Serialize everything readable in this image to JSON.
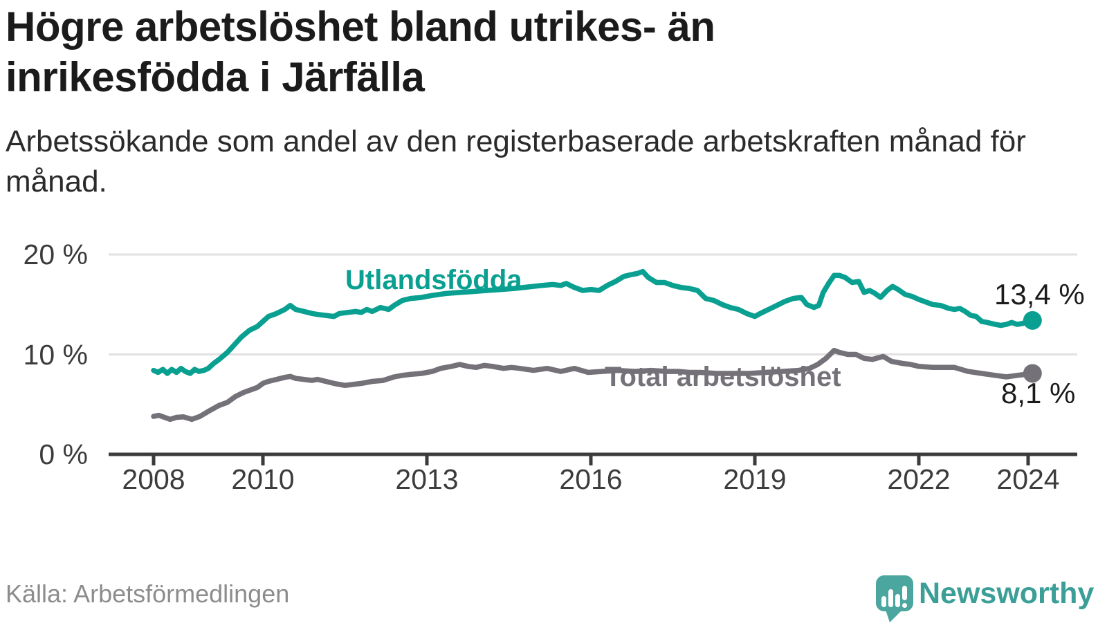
{
  "chart_data": {
    "type": "line",
    "title": "Högre arbetslöshet bland utrikes- än inrikesfödda i Järfälla",
    "subtitle": "Arbetssökande som andel av den registerbaserade arbetskraften månad för månad.",
    "source": "Källa: Arbetsförmedlingen",
    "xlabel": "",
    "ylabel": "",
    "unit": "%",
    "grid": "horizontal-only",
    "legend": "inline-labels",
    "xlim": [
      2007.18,
      2024.92
    ],
    "ylim": [
      0,
      21.6
    ],
    "x_ticks": [
      {
        "value": 2008,
        "label": "2008"
      },
      {
        "value": 2010,
        "label": "2010"
      },
      {
        "value": 2013,
        "label": "2013"
      },
      {
        "value": 2016,
        "label": "2016"
      },
      {
        "value": 2019,
        "label": "2019"
      },
      {
        "value": 2022,
        "label": "2022"
      },
      {
        "value": 2024,
        "label": "2024"
      }
    ],
    "y_ticks": [
      {
        "value": 0,
        "label": "0 %"
      },
      {
        "value": 10,
        "label": "10 %"
      },
      {
        "value": 20,
        "label": "20 %"
      }
    ],
    "series": [
      {
        "name": "Utlandsfödda",
        "color": "#0aa091",
        "end_label": "13,4 %",
        "end_value": 13.4,
        "points": [
          [
            2008.0,
            8.4
          ],
          [
            2008.08,
            8.2
          ],
          [
            2008.17,
            8.5
          ],
          [
            2008.25,
            8.1
          ],
          [
            2008.33,
            8.5
          ],
          [
            2008.42,
            8.2
          ],
          [
            2008.5,
            8.6
          ],
          [
            2008.58,
            8.3
          ],
          [
            2008.67,
            8.1
          ],
          [
            2008.75,
            8.5
          ],
          [
            2008.83,
            8.3
          ],
          [
            2008.92,
            8.4
          ],
          [
            2009.0,
            8.6
          ],
          [
            2009.1,
            9.1
          ],
          [
            2009.2,
            9.5
          ],
          [
            2009.35,
            10.2
          ],
          [
            2009.5,
            11.1
          ],
          [
            2009.6,
            11.7
          ],
          [
            2009.75,
            12.4
          ],
          [
            2009.9,
            12.8
          ],
          [
            2010.0,
            13.3
          ],
          [
            2010.1,
            13.8
          ],
          [
            2010.25,
            14.1
          ],
          [
            2010.4,
            14.5
          ],
          [
            2010.5,
            14.9
          ],
          [
            2010.6,
            14.5
          ],
          [
            2010.75,
            14.3
          ],
          [
            2010.9,
            14.1
          ],
          [
            2011.0,
            14.0
          ],
          [
            2011.15,
            13.9
          ],
          [
            2011.3,
            13.8
          ],
          [
            2011.4,
            14.1
          ],
          [
            2011.55,
            14.2
          ],
          [
            2011.7,
            14.3
          ],
          [
            2011.8,
            14.2
          ],
          [
            2011.9,
            14.5
          ],
          [
            2012.0,
            14.3
          ],
          [
            2012.15,
            14.7
          ],
          [
            2012.3,
            14.5
          ],
          [
            2012.4,
            14.9
          ],
          [
            2012.55,
            15.4
          ],
          [
            2012.7,
            15.6
          ],
          [
            2012.9,
            15.7
          ],
          [
            2013.1,
            15.9
          ],
          [
            2013.35,
            16.1
          ],
          [
            2013.6,
            16.2
          ],
          [
            2013.85,
            16.3
          ],
          [
            2014.1,
            16.4
          ],
          [
            2014.35,
            16.5
          ],
          [
            2014.6,
            16.6
          ],
          [
            2014.85,
            16.75
          ],
          [
            2015.1,
            16.9
          ],
          [
            2015.3,
            17.0
          ],
          [
            2015.45,
            16.9
          ],
          [
            2015.55,
            17.1
          ],
          [
            2015.7,
            16.7
          ],
          [
            2015.85,
            16.4
          ],
          [
            2016.0,
            16.5
          ],
          [
            2016.15,
            16.4
          ],
          [
            2016.3,
            16.9
          ],
          [
            2016.45,
            17.3
          ],
          [
            2016.6,
            17.8
          ],
          [
            2016.75,
            18.0
          ],
          [
            2016.85,
            18.1
          ],
          [
            2016.95,
            18.3
          ],
          [
            2017.05,
            17.7
          ],
          [
            2017.2,
            17.2
          ],
          [
            2017.35,
            17.2
          ],
          [
            2017.5,
            16.9
          ],
          [
            2017.65,
            16.7
          ],
          [
            2017.8,
            16.6
          ],
          [
            2017.95,
            16.4
          ],
          [
            2018.1,
            15.6
          ],
          [
            2018.25,
            15.4
          ],
          [
            2018.4,
            15.0
          ],
          [
            2018.55,
            14.7
          ],
          [
            2018.7,
            14.5
          ],
          [
            2018.85,
            14.1
          ],
          [
            2019.0,
            13.8
          ],
          [
            2019.1,
            14.1
          ],
          [
            2019.25,
            14.5
          ],
          [
            2019.4,
            14.9
          ],
          [
            2019.55,
            15.3
          ],
          [
            2019.7,
            15.6
          ],
          [
            2019.85,
            15.7
          ],
          [
            2019.95,
            15.0
          ],
          [
            2020.08,
            14.7
          ],
          [
            2020.17,
            14.9
          ],
          [
            2020.25,
            16.2
          ],
          [
            2020.35,
            17.1
          ],
          [
            2020.45,
            17.9
          ],
          [
            2020.55,
            17.9
          ],
          [
            2020.65,
            17.7
          ],
          [
            2020.78,
            17.2
          ],
          [
            2020.9,
            17.3
          ],
          [
            2021.0,
            16.2
          ],
          [
            2021.1,
            16.4
          ],
          [
            2021.2,
            16.1
          ],
          [
            2021.3,
            15.7
          ],
          [
            2021.42,
            16.4
          ],
          [
            2021.52,
            16.8
          ],
          [
            2021.62,
            16.5
          ],
          [
            2021.75,
            16.0
          ],
          [
            2021.88,
            15.8
          ],
          [
            2022.0,
            15.5
          ],
          [
            2022.1,
            15.3
          ],
          [
            2022.25,
            15.0
          ],
          [
            2022.4,
            14.9
          ],
          [
            2022.55,
            14.6
          ],
          [
            2022.65,
            14.5
          ],
          [
            2022.75,
            14.6
          ],
          [
            2022.85,
            14.3
          ],
          [
            2022.95,
            13.9
          ],
          [
            2023.05,
            13.8
          ],
          [
            2023.15,
            13.3
          ],
          [
            2023.25,
            13.2
          ],
          [
            2023.4,
            13.0
          ],
          [
            2023.5,
            12.9
          ],
          [
            2023.6,
            13.0
          ],
          [
            2023.7,
            13.2
          ],
          [
            2023.8,
            13.0
          ],
          [
            2023.9,
            13.1
          ],
          [
            2024.0,
            13.3
          ],
          [
            2024.08,
            13.4
          ]
        ]
      },
      {
        "name": "Total arbetslöshet",
        "color": "#757179",
        "end_label": "8,1 %",
        "end_value": 8.1,
        "points": [
          [
            2008.0,
            3.8
          ],
          [
            2008.1,
            3.9
          ],
          [
            2008.2,
            3.7
          ],
          [
            2008.3,
            3.5
          ],
          [
            2008.42,
            3.7
          ],
          [
            2008.55,
            3.75
          ],
          [
            2008.7,
            3.5
          ],
          [
            2008.85,
            3.8
          ],
          [
            2009.0,
            4.3
          ],
          [
            2009.2,
            4.9
          ],
          [
            2009.35,
            5.2
          ],
          [
            2009.5,
            5.8
          ],
          [
            2009.65,
            6.2
          ],
          [
            2009.8,
            6.5
          ],
          [
            2009.9,
            6.7
          ],
          [
            2010.0,
            7.1
          ],
          [
            2010.1,
            7.3
          ],
          [
            2010.25,
            7.5
          ],
          [
            2010.4,
            7.7
          ],
          [
            2010.5,
            7.8
          ],
          [
            2010.6,
            7.6
          ],
          [
            2010.75,
            7.5
          ],
          [
            2010.9,
            7.4
          ],
          [
            2011.0,
            7.5
          ],
          [
            2011.15,
            7.3
          ],
          [
            2011.3,
            7.1
          ],
          [
            2011.5,
            6.9
          ],
          [
            2011.65,
            7.0
          ],
          [
            2011.8,
            7.1
          ],
          [
            2012.0,
            7.3
          ],
          [
            2012.2,
            7.4
          ],
          [
            2012.4,
            7.75
          ],
          [
            2012.55,
            7.9
          ],
          [
            2012.7,
            8.0
          ],
          [
            2012.9,
            8.1
          ],
          [
            2013.1,
            8.3
          ],
          [
            2013.25,
            8.6
          ],
          [
            2013.45,
            8.8
          ],
          [
            2013.6,
            9.0
          ],
          [
            2013.75,
            8.8
          ],
          [
            2013.9,
            8.7
          ],
          [
            2014.05,
            8.9
          ],
          [
            2014.2,
            8.8
          ],
          [
            2014.4,
            8.6
          ],
          [
            2014.55,
            8.7
          ],
          [
            2014.7,
            8.6
          ],
          [
            2014.95,
            8.4
          ],
          [
            2015.2,
            8.6
          ],
          [
            2015.45,
            8.3
          ],
          [
            2015.7,
            8.6
          ],
          [
            2015.95,
            8.2
          ],
          [
            2016.2,
            8.3
          ],
          [
            2016.5,
            8.4
          ],
          [
            2016.8,
            8.3
          ],
          [
            2017.1,
            8.4
          ],
          [
            2017.4,
            8.3
          ],
          [
            2017.6,
            8.3
          ],
          [
            2017.8,
            8.2
          ],
          [
            2018.0,
            8.2
          ],
          [
            2018.3,
            8.1
          ],
          [
            2018.6,
            8.1
          ],
          [
            2018.9,
            8.1
          ],
          [
            2019.2,
            8.2
          ],
          [
            2019.5,
            8.3
          ],
          [
            2019.8,
            8.4
          ],
          [
            2020.0,
            8.6
          ],
          [
            2020.15,
            9.0
          ],
          [
            2020.3,
            9.6
          ],
          [
            2020.45,
            10.4
          ],
          [
            2020.55,
            10.2
          ],
          [
            2020.7,
            10.0
          ],
          [
            2020.85,
            10.0
          ],
          [
            2021.0,
            9.6
          ],
          [
            2021.15,
            9.5
          ],
          [
            2021.35,
            9.8
          ],
          [
            2021.5,
            9.3
          ],
          [
            2021.7,
            9.1
          ],
          [
            2021.85,
            9.0
          ],
          [
            2022.0,
            8.8
          ],
          [
            2022.25,
            8.7
          ],
          [
            2022.5,
            8.7
          ],
          [
            2022.65,
            8.7
          ],
          [
            2022.9,
            8.3
          ],
          [
            2023.15,
            8.1
          ],
          [
            2023.4,
            7.9
          ],
          [
            2023.6,
            7.75
          ],
          [
            2023.8,
            7.9
          ],
          [
            2023.95,
            8.0
          ],
          [
            2024.08,
            8.1
          ]
        ]
      }
    ]
  },
  "footer": {
    "source": "Källa: Arbetsförmedlingen",
    "logo_text": "Newsworthy"
  },
  "colors": {
    "foreign_born_line": "#0aa091",
    "total_line": "#757179",
    "axis": "#3b3b3b",
    "gridline": "#e1e1e1",
    "title_text": "#1b1b1b",
    "tick_text": "#3c3c3c",
    "source_text": "#8c8c8c",
    "logo_mark": "#4aa69e",
    "logo_text": "#3c9f97"
  }
}
